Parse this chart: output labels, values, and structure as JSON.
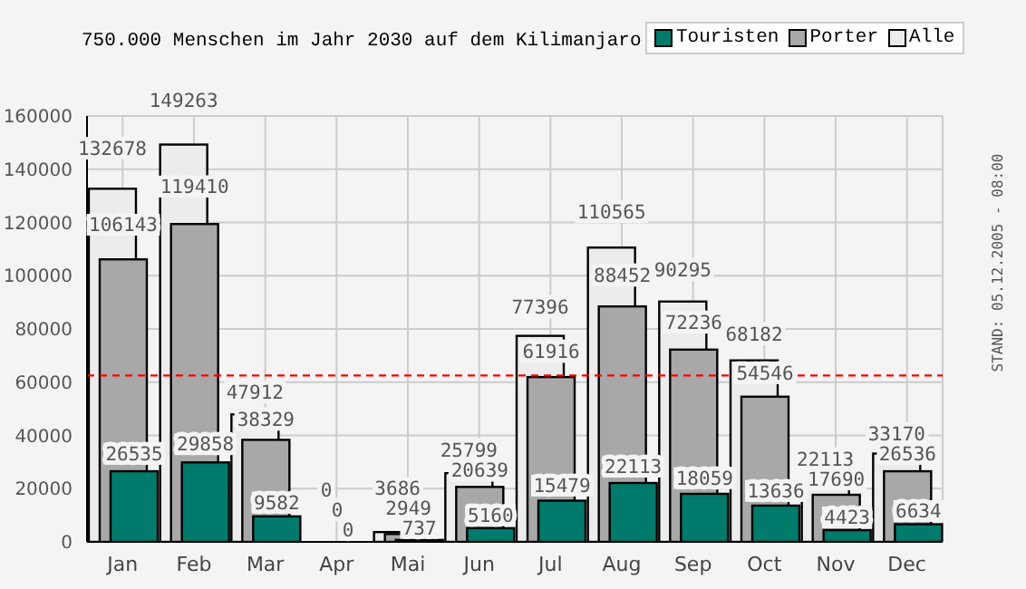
{
  "chart_data": {
    "type": "bar",
    "title": "750.000 Menschen im Jahr 2030 auf dem Kilimanjaro",
    "categories": [
      "Jan",
      "Feb",
      "Mar",
      "Apr",
      "Mai",
      "Jun",
      "Jul",
      "Aug",
      "Sep",
      "Oct",
      "Nov",
      "Dec"
    ],
    "series": [
      {
        "name": "Touristen",
        "color": "#007a6a",
        "values": [
          26535,
          29858,
          9582,
          0,
          737,
          5160,
          15479,
          22113,
          18059,
          13636,
          4423,
          6634
        ]
      },
      {
        "name": "Porter",
        "color": "#a8a8a8",
        "values": [
          106143,
          119410,
          38329,
          0,
          2949,
          20639,
          61916,
          88452,
          72236,
          54546,
          17690,
          26536
        ]
      },
      {
        "name": "Alle",
        "color": "#ececec",
        "values": [
          132678,
          149263,
          47912,
          0,
          3686,
          25799,
          77396,
          110565,
          90295,
          68182,
          22113,
          33170
        ]
      }
    ],
    "ylim": [
      0,
      160000
    ],
    "yticks": [
      0,
      20000,
      40000,
      60000,
      80000,
      100000,
      120000,
      140000,
      160000
    ],
    "grid": true,
    "legend": "top right",
    "data_labels": true,
    "ref_lines": [
      {
        "axis": "y",
        "value": 62500,
        "color": "#ff0000",
        "line_style": "dashed"
      }
    ],
    "annotations": [
      "STAND: 05.12.2005 - 08:00"
    ]
  }
}
